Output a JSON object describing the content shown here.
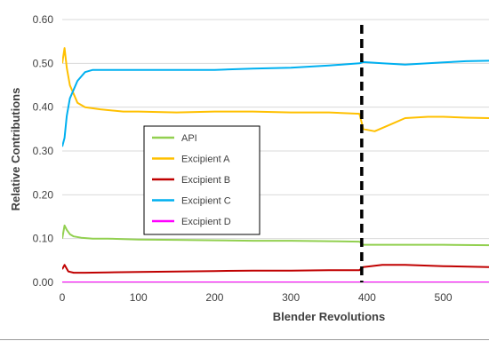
{
  "chart_data": {
    "type": "line",
    "title": "",
    "xlabel": "Blender Revolutions",
    "ylabel": "Relative Contributions",
    "xlim": [
      0,
      560
    ],
    "ylim": [
      0,
      0.6
    ],
    "x_ticks": [
      0,
      100,
      200,
      300,
      400,
      500
    ],
    "x_tick_labels": [
      "0",
      "100",
      "200",
      "300",
      "400",
      "500"
    ],
    "y_ticks": [
      0,
      0.1,
      0.2,
      0.3,
      0.4,
      0.5,
      0.6
    ],
    "y_tick_labels": [
      "0.00",
      "0.10",
      "0.20",
      "0.30",
      "0.40",
      "0.50",
      "0.60"
    ],
    "grid": "horizontal",
    "legend_position": "center-left",
    "vertical_marker": {
      "x": 393,
      "style": "dashed",
      "color": "#000000"
    },
    "series": [
      {
        "name": "API",
        "color": "#92D050",
        "x": [
          0,
          3,
          6,
          10,
          15,
          25,
          40,
          60,
          100,
          150,
          200,
          250,
          300,
          350,
          390,
          395,
          420,
          450,
          500,
          560
        ],
        "y": [
          0.1,
          0.13,
          0.12,
          0.11,
          0.105,
          0.102,
          0.1,
          0.1,
          0.098,
          0.097,
          0.096,
          0.095,
          0.095,
          0.094,
          0.093,
          0.086,
          0.086,
          0.086,
          0.086,
          0.085
        ]
      },
      {
        "name": "Excipient A",
        "color": "#FFC000",
        "x": [
          0,
          3,
          6,
          10,
          15,
          20,
          30,
          50,
          80,
          100,
          150,
          200,
          250,
          300,
          350,
          390,
          395,
          410,
          430,
          450,
          480,
          500,
          530,
          560
        ],
        "y": [
          0.5,
          0.535,
          0.49,
          0.45,
          0.43,
          0.41,
          0.4,
          0.395,
          0.39,
          0.39,
          0.388,
          0.39,
          0.39,
          0.388,
          0.388,
          0.385,
          0.35,
          0.345,
          0.36,
          0.375,
          0.378,
          0.378,
          0.376,
          0.375
        ]
      },
      {
        "name": "Excipient B",
        "color": "#C00000",
        "x": [
          0,
          3,
          8,
          15,
          30,
          60,
          100,
          150,
          200,
          250,
          300,
          350,
          390,
          395,
          420,
          450,
          500,
          560
        ],
        "y": [
          0.03,
          0.04,
          0.025,
          0.022,
          0.022,
          0.023,
          0.024,
          0.025,
          0.026,
          0.027,
          0.027,
          0.028,
          0.028,
          0.035,
          0.04,
          0.04,
          0.037,
          0.035
        ]
      },
      {
        "name": "Excipient C",
        "color": "#00B0F0",
        "x": [
          0,
          3,
          6,
          10,
          15,
          20,
          25,
          30,
          40,
          60,
          100,
          150,
          200,
          250,
          300,
          350,
          390,
          395,
          420,
          450,
          480,
          500,
          530,
          560
        ],
        "y": [
          0.31,
          0.33,
          0.38,
          0.42,
          0.44,
          0.46,
          0.47,
          0.48,
          0.485,
          0.485,
          0.485,
          0.485,
          0.485,
          0.488,
          0.49,
          0.495,
          0.5,
          0.503,
          0.5,
          0.497,
          0.5,
          0.502,
          0.505,
          0.506
        ]
      },
      {
        "name": "Excipient D",
        "color": "#FF00FF",
        "x": [
          0,
          560
        ],
        "y": [
          0.0,
          0.0
        ]
      }
    ]
  }
}
